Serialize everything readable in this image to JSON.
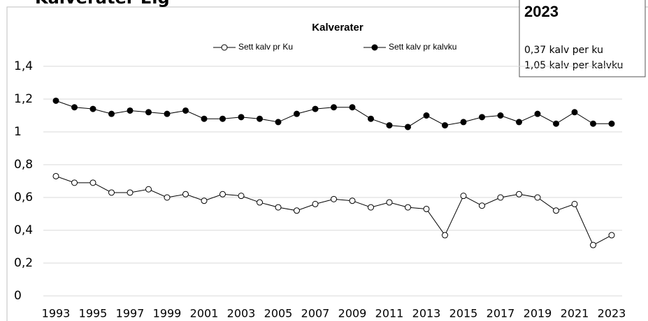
{
  "header": {
    "title": "Kalverater Elg"
  },
  "inset": {
    "year": "2023",
    "lines": [
      "0,37 kalv per ku",
      "1,05 kalv per kalvku"
    ]
  },
  "chart_data": {
    "type": "line",
    "title": "Kalverater",
    "categories": [
      "1993",
      null,
      "1995",
      null,
      "1997",
      null,
      "1999",
      null,
      "2001",
      null,
      "2003",
      null,
      "2005",
      null,
      "2007",
      null,
      "2009",
      null,
      "2011",
      null,
      "2013",
      null,
      "2015",
      null,
      "2017",
      null,
      "2019",
      null,
      "2021",
      null,
      "2023"
    ],
    "series": [
      {
        "name": "Sett kalv pr Ku",
        "color": "#000000",
        "marker_fill": "#ffffff",
        "values": [
          0.73,
          0.69,
          0.69,
          0.63,
          0.63,
          0.65,
          0.6,
          0.62,
          0.58,
          0.62,
          0.61,
          0.57,
          0.54,
          0.52,
          0.56,
          0.59,
          0.58,
          0.54,
          0.57,
          0.54,
          0.53,
          0.37,
          0.61,
          0.55,
          0.6,
          0.62,
          0.6,
          0.52,
          0.56,
          0.31,
          0.37
        ]
      },
      {
        "name": "Sett kalv pr kalvku",
        "color": "#000000",
        "marker_fill": "#000000",
        "values": [
          1.19,
          1.15,
          1.14,
          1.11,
          1.13,
          1.12,
          1.11,
          1.13,
          1.08,
          1.08,
          1.09,
          1.08,
          1.06,
          1.11,
          1.14,
          1.15,
          1.15,
          1.08,
          1.04,
          1.03,
          1.1,
          1.04,
          1.06,
          1.09,
          1.1,
          1.06,
          1.11,
          1.05,
          1.12,
          1.05,
          1.05
        ]
      }
    ],
    "ylim": [
      0,
      1.4
    ],
    "yticks": [
      0,
      {
        "value": 0.2,
        "label": "0,2"
      },
      {
        "value": 0.4,
        "label": "0,4"
      },
      {
        "value": 0.6,
        "label": "0,6"
      },
      {
        "value": 0.8,
        "label": "0,8"
      },
      1,
      {
        "value": 1.2,
        "label": "1,2"
      },
      {
        "value": 1.4,
        "label": "1,4"
      }
    ],
    "grid": true
  }
}
